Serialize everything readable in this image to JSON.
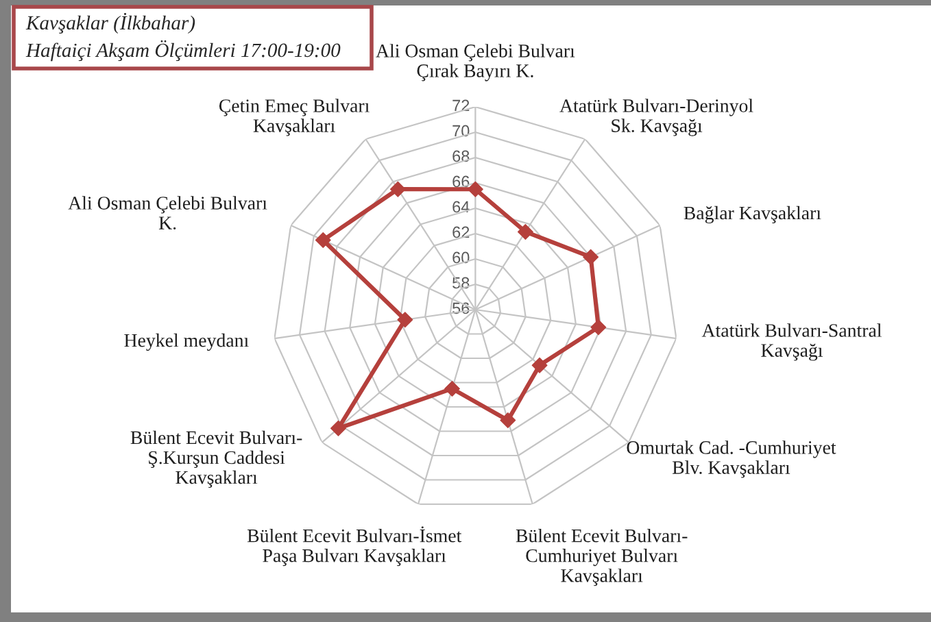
{
  "chart_data": {
    "type": "radar",
    "title": "Kavşaklar (İlkbahar)",
    "subtitle": "Haftaiçi Akşam Ölçümleri 17:00-19:00",
    "categories": [
      "Ali Osman Çelebi Bulvarı\nÇırak Bayırı K.",
      "Atatürk Bulvarı-Derinyol\nSk. Kavşağı",
      "Bağlar Kavşakları",
      "Atatürk Bulvarı-Santral\nKavşağı",
      "Omurtak Cad. -Cumhuriyet\nBlv. Kavşakları",
      "Bülent Ecevit Bulvarı-\nCumhuriyet Bulvarı\nKavşakları",
      "Bülent Ecevit Bulvarı-İsmet\nPaşa Bulvarı Kavşakları",
      "Bülent Ecevit Bulvarı-\nŞ.Kurşun Caddesi\nKavşakları",
      "Heykel meydanı",
      "Ali Osman Çelebi Bulvarı\nK.",
      "Çetin Emeç Bulvarı\nKavşakları"
    ],
    "series": [
      {
        "color": "#b5403c",
        "values": [
          65.5,
          63.3,
          66.0,
          65.8,
          62.7,
          65.1,
          62.5,
          70.3,
          61.6,
          69.2,
          67.3
        ]
      }
    ],
    "ylim": [
      56,
      72
    ],
    "yticks": [
      56,
      58,
      60,
      62,
      64,
      66,
      68,
      70,
      72
    ],
    "grid": true,
    "marker": "diamond",
    "line_style": "solid"
  }
}
